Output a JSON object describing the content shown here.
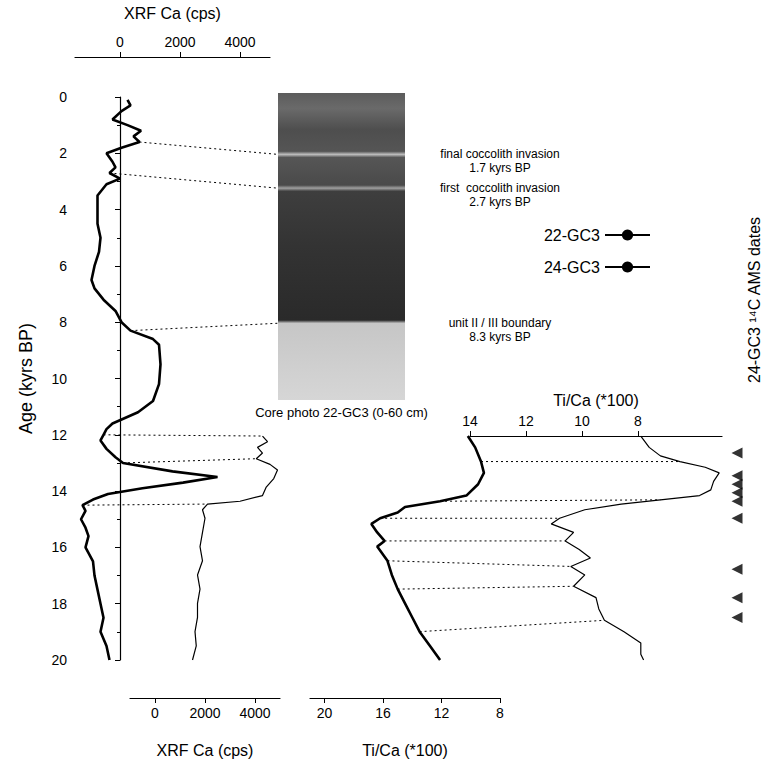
{
  "chart_data": {
    "type": "line",
    "y_label": "Age (kyrs BP)",
    "ylim": [
      20,
      0
    ],
    "yticks": [
      0,
      2,
      4,
      6,
      8,
      10,
      12,
      14,
      16,
      18,
      20
    ],
    "grid": false,
    "legend": "right",
    "x_axes": {
      "top_ca": {
        "label": "XRF Ca (cps)",
        "xlim": [
          -1500,
          5000
        ],
        "xticks": [
          0,
          2000,
          4000
        ],
        "series": [
          {
            "name": "22-GC3",
            "color": "#000000",
            "line_style": "bold",
            "age": [
              0.1,
              0.3,
              0.5,
              0.8,
              1.0,
              1.2,
              1.4,
              1.6,
              1.8,
              2.0,
              2.3,
              2.5,
              2.7,
              2.9,
              3.1,
              3.5,
              4.0,
              4.5,
              5.0,
              5.5,
              6.0,
              6.5,
              6.8,
              7.2,
              7.6,
              8.0,
              8.3,
              8.6,
              8.8,
              9.5,
              10.2,
              10.8,
              11.2,
              11.6,
              11.8,
              12.0,
              12.2,
              12.5,
              12.8,
              13.0,
              13.3,
              13.5,
              13.7,
              13.9,
              14.1,
              14.3,
              14.5,
              14.7,
              15.0,
              15.3,
              15.6,
              16.0,
              16.5,
              17.0,
              17.5,
              18.0,
              18.5,
              19.0,
              19.5,
              20.0
            ],
            "values": [
              250,
              350,
              50,
              -250,
              250,
              700,
              450,
              650,
              50,
              -450,
              -250,
              -150,
              -350,
              0,
              -450,
              -750,
              -750,
              -750,
              -650,
              -700,
              -850,
              -950,
              -850,
              -550,
              -150,
              50,
              350,
              1100,
              1300,
              1350,
              1300,
              1100,
              600,
              -250,
              -450,
              -550,
              -650,
              -450,
              -150,
              100,
              1750,
              3250,
              2100,
              750,
              -400,
              -900,
              -1250,
              -1150,
              -1300,
              -1150,
              -1050,
              -1150,
              -900,
              -850,
              -750,
              -650,
              -550,
              -650,
              -450,
              -350
            ]
          }
        ]
      },
      "bottom_ca": {
        "label": "XRF Ca (cps)",
        "xlim": [
          -1000,
          5000
        ],
        "xticks": [
          0,
          2000,
          4000
        ],
        "series": [
          {
            "name": "24-GC3",
            "color": "#000000",
            "line_style": "thin",
            "age": [
              12.1,
              12.3,
              12.5,
              12.7,
              12.9,
              13.1,
              13.3,
              13.6,
              13.9,
              14.2,
              14.4,
              14.5,
              14.7,
              15.0,
              15.5,
              16.0,
              16.5,
              17.0,
              17.5,
              18.0,
              18.5,
              19.0,
              19.5,
              20.0
            ],
            "values": [
              4300,
              4500,
              4100,
              4300,
              4050,
              4600,
              4900,
              4750,
              4450,
              4300,
              3400,
              2100,
              1900,
              2000,
              1900,
              1800,
              1900,
              1700,
              1800,
              1700,
              1700,
              1600,
              1650,
              1500
            ]
          }
        ]
      },
      "bottom_ti_ca": {
        "label": "Ti/Ca (*100)",
        "xlim": [
          21,
          8
        ],
        "xticks": [
          20,
          16,
          12,
          8
        ],
        "series": [
          {
            "name": "22-GC3",
            "color": "#000000",
            "line_style": "bold",
            "age": [
              12.1,
              12.5,
              13.0,
              13.4,
              13.8,
              14.2,
              14.4,
              14.6,
              14.8,
              15.0,
              15.2,
              15.5,
              15.8,
              16.0,
              16.5,
              17.0,
              17.5,
              18.0,
              18.5,
              19.0,
              19.5,
              20.0
            ],
            "values": [
              10.2,
              9.7,
              9.3,
              9.1,
              9.5,
              10.3,
              12.1,
              14.5,
              15.0,
              16.2,
              16.8,
              16.4,
              15.9,
              16.4,
              15.7,
              15.4,
              15.0,
              14.5,
              14.0,
              13.5,
              12.8,
              12.1
            ]
          }
        ]
      },
      "middle_ti_ca": {
        "label": "Ti/Ca (*100)",
        "xlim": [
          14,
          5
        ],
        "xticks": [
          14,
          12,
          10,
          8
        ],
        "series": [
          {
            "name": "24-GC3",
            "color": "#000000",
            "line_style": "thin",
            "age": [
              12.1,
              12.5,
              12.8,
              13.0,
              13.2,
              13.4,
              13.7,
              14.0,
              14.2,
              14.35,
              14.5,
              14.7,
              15.0,
              15.2,
              15.5,
              15.8,
              16.1,
              16.4,
              16.7,
              17.0,
              17.4,
              17.8,
              18.2,
              18.6,
              19.0,
              19.4,
              19.8,
              20.0
            ],
            "values": [
              7.9,
              7.6,
              7.2,
              6.5,
              5.6,
              5.1,
              5.3,
              5.4,
              5.8,
              7.2,
              8.6,
              9.9,
              10.8,
              11.1,
              10.3,
              10.6,
              10.1,
              9.7,
              10.4,
              9.9,
              10.3,
              9.5,
              9.4,
              9.2,
              8.5,
              7.9,
              7.9,
              7.8
            ]
          }
        ]
      }
    },
    "tie_points": {
      "ca": [
        12.1,
        13.0,
        14.5
      ],
      "ti_ca": [
        13.0,
        14.4,
        15.1,
        15.9,
        16.7,
        17.4,
        18.8
      ]
    },
    "core_photo_label": "Core photo 22-GC3 (0-60 cm)",
    "annotations": [
      {
        "text": "final coccolith invasion",
        "date_label": "1.7 kyrs BP",
        "age": 1.7
      },
      {
        "text": "first  coccolith invasion",
        "date_label": "2.7 kyrs BP",
        "age": 2.7
      },
      {
        "text": "unit II / III boundary",
        "date_label": "8.3 kyrs BP",
        "age": 8.3
      }
    ],
    "ams_dates": {
      "label": "24-GC3 ¹⁴C AMS dates",
      "marker": "triangle",
      "ages": [
        12.7,
        13.5,
        13.8,
        14.1,
        14.4,
        15.0,
        16.8,
        17.8,
        18.5
      ]
    }
  }
}
